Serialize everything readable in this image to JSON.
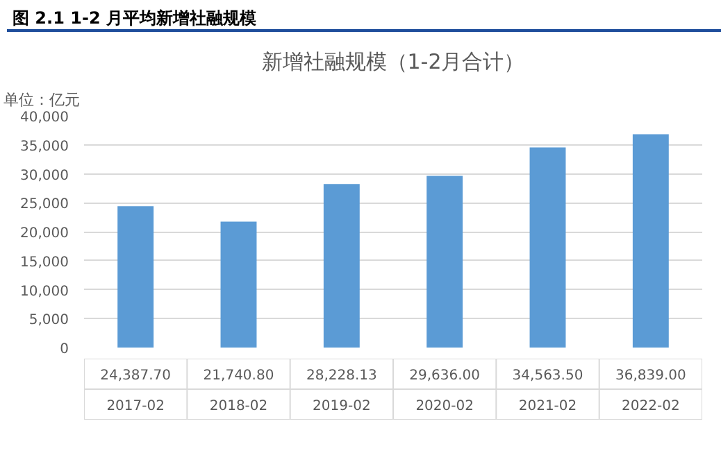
{
  "chart_data": {
    "type": "bar",
    "title": "新增社融规模（1-2月合计）",
    "ylabel": "单位：亿元",
    "annotations": [
      "图 2.1 1-2 月平均新增社融规模"
    ],
    "categories": [
      "2017-02",
      "2018-02",
      "2019-02",
      "2020-02",
      "2021-02",
      "2022-02"
    ],
    "values": [
      24387.7,
      21740.8,
      28228.13,
      29636.0,
      34563.5,
      36839.0
    ],
    "value_labels": [
      "24,387.70",
      "21,740.80",
      "28,228.13",
      "29,636.00",
      "34,563.50",
      "36,839.00"
    ],
    "color": "#5b9bd5",
    "ylim": [
      0,
      40000
    ],
    "yticks": [
      {
        "value": 0,
        "label": "0"
      },
      {
        "value": 5000,
        "label": "5,000"
      },
      {
        "value": 10000,
        "label": "10,000"
      },
      {
        "value": 15000,
        "label": "15,000"
      },
      {
        "value": 20000,
        "label": "20,000"
      },
      {
        "value": 25000,
        "label": "25,000"
      },
      {
        "value": 30000,
        "label": "30,000"
      },
      {
        "value": 35000,
        "label": "35,000"
      },
      {
        "value": 40000,
        "label": "40,000"
      }
    ],
    "grid": "y"
  }
}
